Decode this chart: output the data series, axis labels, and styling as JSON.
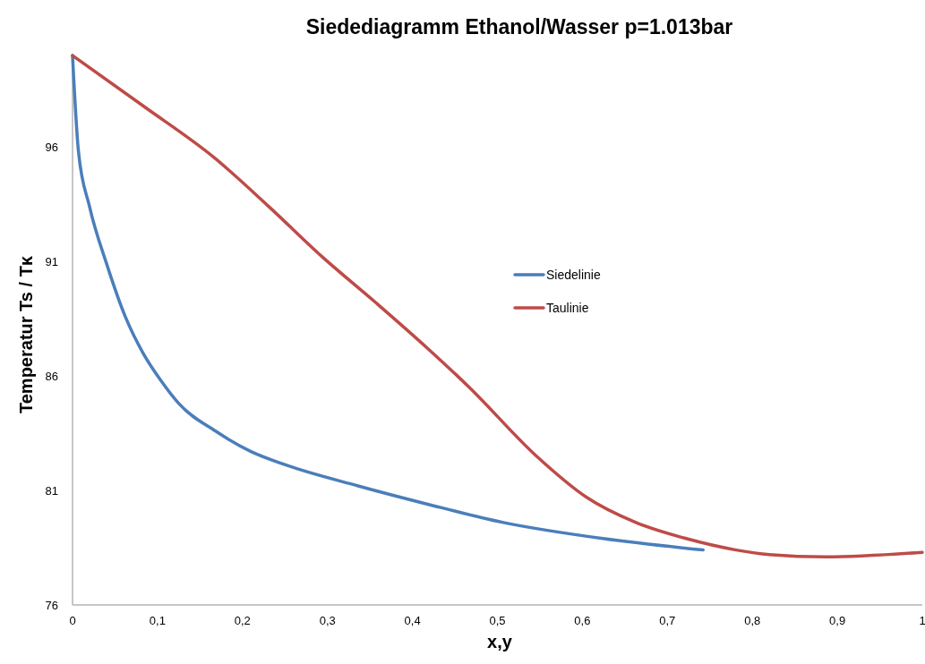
{
  "chart_data": {
    "type": "line",
    "title": "Siedediagramm Ethanol/Wasser p=1.013bar",
    "xlabel": "x,y",
    "ylabel": "Temperatur Ts / Tκ",
    "xlim": [
      0,
      1
    ],
    "xticks": [
      0,
      {
        "value": 0.1,
        "label": "0,1"
      },
      {
        "value": 0.2,
        "label": "0,2"
      },
      {
        "value": 0.3,
        "label": "0,3"
      },
      {
        "value": 0.4,
        "label": "0,4"
      },
      {
        "value": 0.5,
        "label": "0,5"
      },
      {
        "value": 0.6,
        "label": "0,6"
      },
      {
        "value": 0.7,
        "label": "0,7"
      },
      {
        "value": 0.8,
        "label": "0,8"
      },
      {
        "value": 0.9,
        "label": "0,9"
      },
      1
    ],
    "ylim": [
      76,
      100
    ],
    "yticks": [
      76,
      81,
      86,
      91,
      96
    ],
    "grid": false,
    "legend": "center",
    "marker": "none",
    "line_style": "solid",
    "series": [
      {
        "name": "Siedelinie",
        "color": "#4a7ebb",
        "x": [
          0,
          0.007,
          0.02,
          0.041,
          0.062,
          0.083,
          0.104,
          0.125,
          0.168,
          0.21,
          0.252,
          0.336,
          0.418,
          0.507,
          0.624,
          0.742
        ],
        "values": [
          100,
          95.8,
          93.4,
          90.8,
          88.6,
          87,
          85.8,
          84.8,
          83.6,
          82.7,
          82.1,
          81.2,
          80.4,
          79.6,
          78.9,
          78.4
        ]
      },
      {
        "name": "Taulinie",
        "color": "#be4b48",
        "x": [
          0,
          0.083,
          0.168,
          0.231,
          0.294,
          0.357,
          0.418,
          0.467,
          0.546,
          0.605,
          0.663,
          0.722,
          0.781,
          0.82,
          0.886,
          1
        ],
        "values": [
          100,
          97.8,
          95.5,
          93.4,
          91.2,
          89.2,
          87.2,
          85.5,
          82.5,
          80.7,
          79.6,
          78.9,
          78.4,
          78.2,
          78.1,
          78.3
        ]
      }
    ]
  }
}
